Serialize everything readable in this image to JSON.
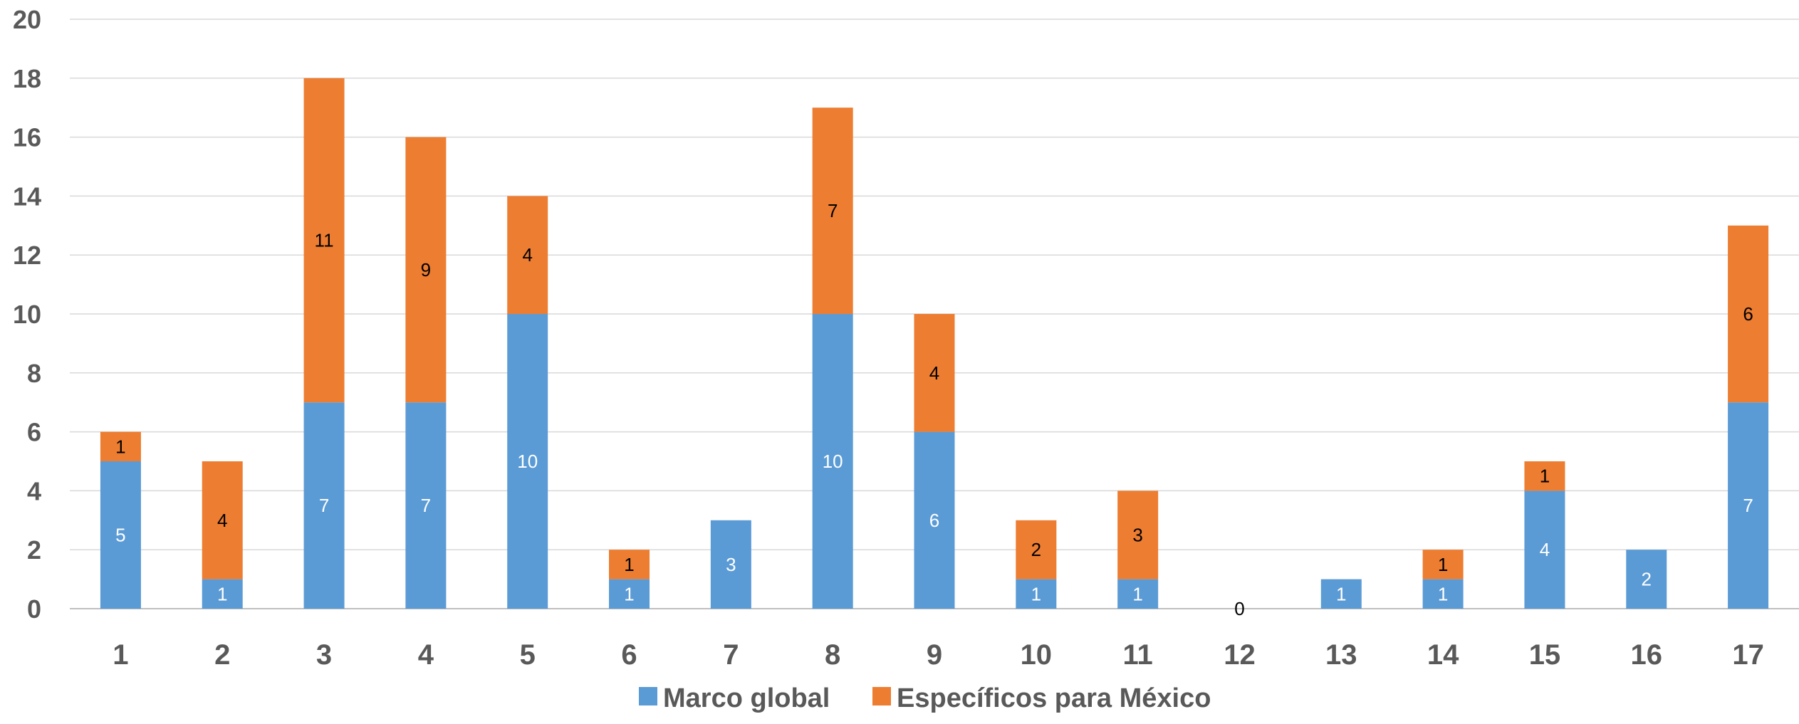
{
  "chart_data": {
    "type": "bar",
    "stacked": true,
    "categories": [
      "1",
      "2",
      "3",
      "4",
      "5",
      "6",
      "7",
      "8",
      "9",
      "10",
      "11",
      "12",
      "13",
      "14",
      "15",
      "16",
      "17"
    ],
    "series": [
      {
        "name": "Marco global",
        "color": "#5B9BD5",
        "values": [
          5,
          1,
          7,
          7,
          10,
          1,
          3,
          10,
          6,
          1,
          1,
          0,
          1,
          1,
          4,
          2,
          7
        ]
      },
      {
        "name": "Específicos para México",
        "color": "#ED7D31",
        "values": [
          1,
          4,
          11,
          9,
          4,
          1,
          0,
          7,
          4,
          2,
          3,
          0,
          0,
          1,
          1,
          0,
          6
        ]
      }
    ],
    "data_labels": {
      "Marco global": [
        "5",
        "1",
        "7",
        "7",
        "10",
        "1",
        "3",
        "10",
        "6",
        "1",
        "1",
        "",
        "1",
        "1",
        "4",
        "2",
        "7"
      ],
      "Específicos para México": [
        "1",
        "4",
        "11",
        "9",
        "4",
        "1",
        "",
        "7",
        "4",
        "2",
        "3",
        "",
        "",
        "1",
        "1",
        "",
        "6"
      ]
    },
    "total_labels": [
      "",
      "",
      "",
      "",
      "",
      "",
      "",
      "",
      "",
      "",
      "",
      "0",
      "",
      "",
      "",
      "",
      ""
    ],
    "ylim": [
      0,
      20
    ],
    "yticks": [
      "0",
      "2",
      "4",
      "6",
      "8",
      "10",
      "12",
      "14",
      "16",
      "18",
      "20"
    ],
    "grid": true,
    "legend_position": "bottom",
    "title": "",
    "xlabel": "",
    "ylabel": ""
  }
}
